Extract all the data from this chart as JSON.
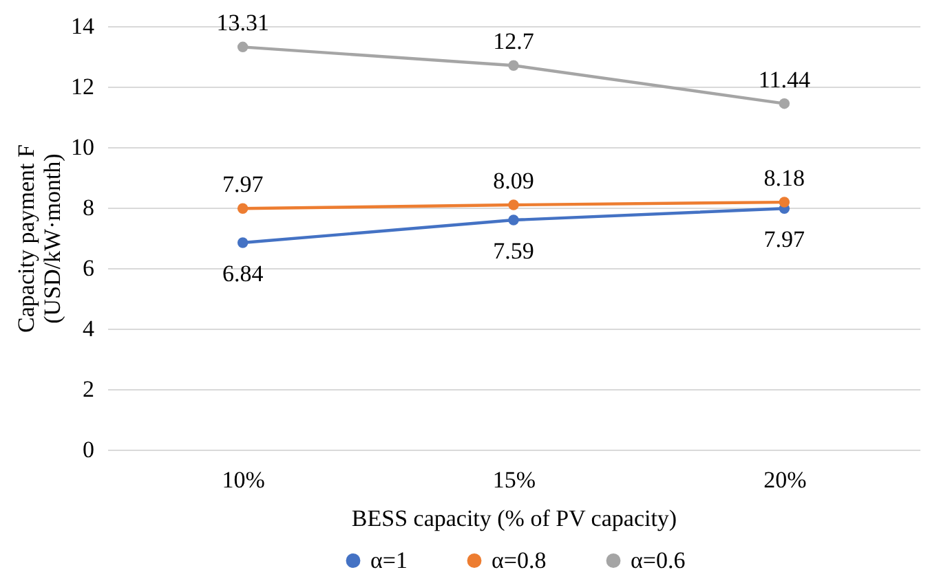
{
  "chart_data": {
    "type": "line",
    "xlabel": "BESS capacity (% of PV capacity)",
    "ylabel": "Capacity payment F (USD/kW·month)",
    "categories": [
      "10%",
      "15%",
      "20%"
    ],
    "series": [
      {
        "name": "α=1",
        "color": "#4472c4",
        "values": [
          6.84,
          7.59,
          7.97
        ]
      },
      {
        "name": "α=0.8",
        "color": "#ed7d31",
        "values": [
          7.97,
          8.09,
          8.18
        ]
      },
      {
        "name": "α=0.6",
        "color": "#a5a5a5",
        "values": [
          13.31,
          12.7,
          11.44
        ]
      }
    ],
    "ylim": [
      0,
      14
    ],
    "yticks": [
      0,
      2,
      4,
      6,
      8,
      10,
      12,
      14
    ],
    "grid": "y",
    "legend": "bottom",
    "marker": "circle",
    "line_style": "solid",
    "data_labels": true
  }
}
